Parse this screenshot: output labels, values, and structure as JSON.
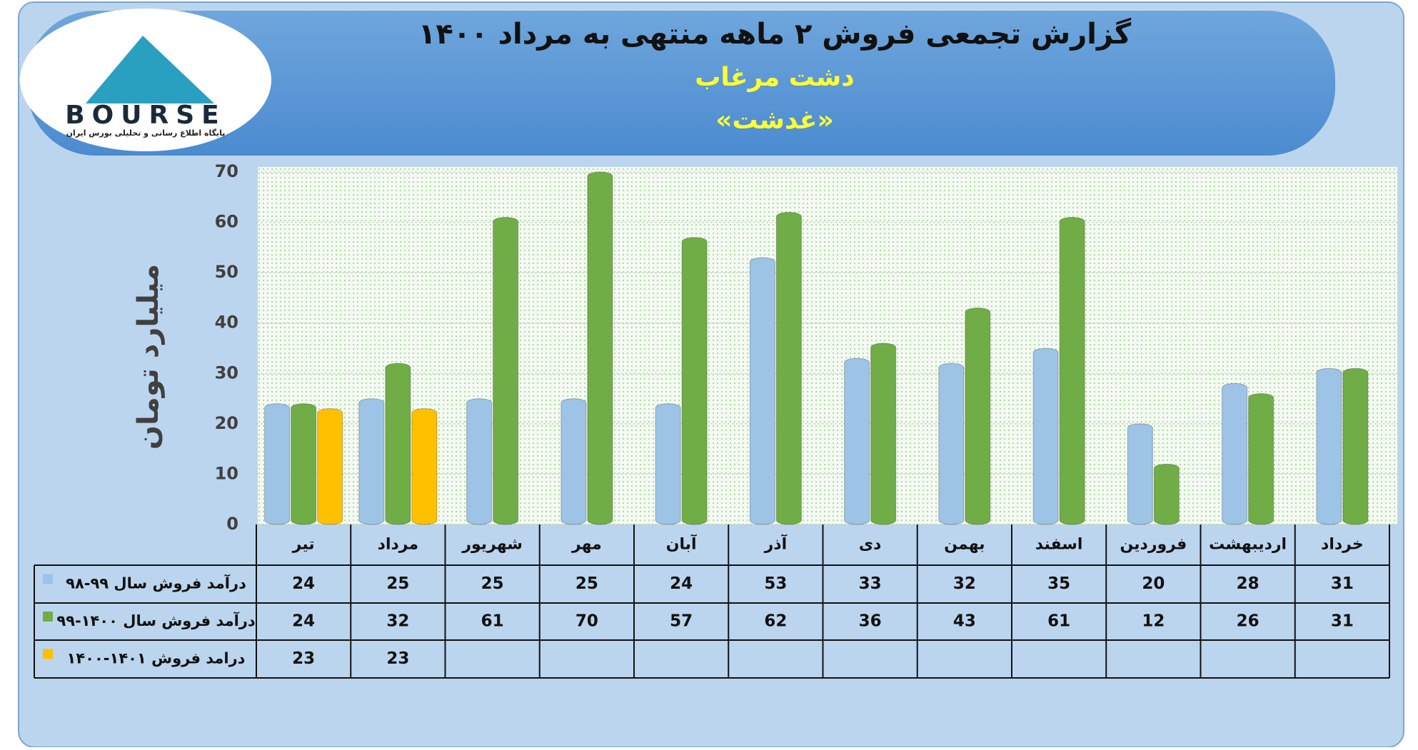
{
  "chart_data": {
    "type": "bar",
    "title": "گزارش تجمعی فروش ۲ ماهه منتهی به مرداد ۱۴۰۰",
    "subtitle": "دشت مرغاب",
    "symbol": "«غدشت»",
    "logo": {
      "name": "BOURSE",
      "caption": "پایگاه اطلاع رسانی و تحلیلی بورس ایران"
    },
    "y_label": "میلیارد تومان",
    "categories": [
      "تیر",
      "مرداد",
      "شهریور",
      "مهر",
      "آبان",
      "آذر",
      "دی",
      "بهمن",
      "اسفند",
      "فروردین",
      "اردیبهشت",
      "خرداد"
    ],
    "series": [
      {
        "name": "درآمد فروش سال ۹۹-۹۸",
        "color": "#9dc3e6",
        "values": [
          24,
          25,
          25,
          25,
          24,
          53,
          33,
          32,
          35,
          20,
          28,
          31
        ]
      },
      {
        "name": "درآمد فروش سال ۱۴۰۰-۹۹",
        "color": "#70ad47",
        "values": [
          24,
          32,
          61,
          70,
          57,
          62,
          36,
          43,
          61,
          12,
          26,
          31
        ]
      },
      {
        "name": "درامد فروش ۱۴۰۱-۱۴۰۰",
        "color": "#ffc000",
        "values": [
          23,
          23,
          null,
          null,
          null,
          null,
          null,
          null,
          null,
          null,
          null,
          null
        ]
      }
    ],
    "ylim": [
      0,
      70
    ],
    "yticks": [
      0,
      10,
      20,
      30,
      40,
      50,
      60,
      70
    ],
    "grid": true
  }
}
